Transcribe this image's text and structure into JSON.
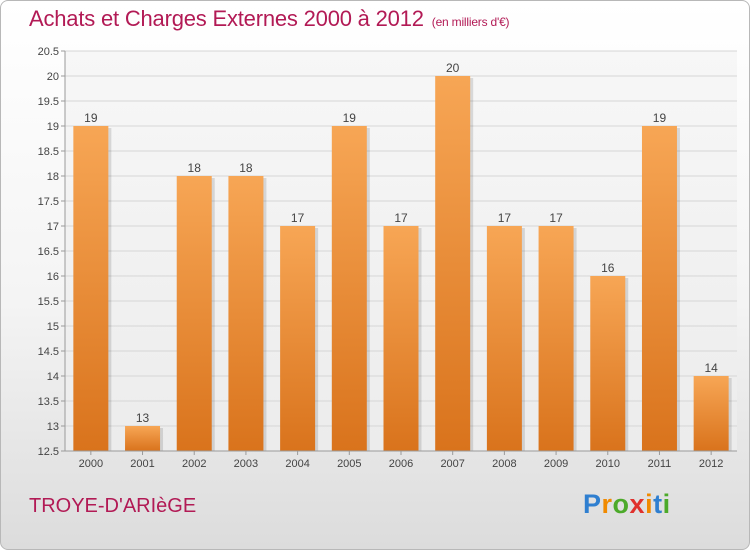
{
  "chart_data": {
    "type": "bar",
    "title": "Achats et Charges Externes 2000 à 2012",
    "unit_note": "(en milliers d'€)",
    "categories": [
      "2000",
      "2001",
      "2002",
      "2003",
      "2004",
      "2005",
      "2006",
      "2007",
      "2008",
      "2009",
      "2010",
      "2011",
      "2012"
    ],
    "values": [
      19,
      13,
      18,
      18,
      17,
      19,
      17,
      20,
      17,
      17,
      16,
      19,
      14
    ],
    "ylim": [
      12.5,
      20.5
    ],
    "yticks": [
      12.5,
      13,
      13.5,
      14,
      14.5,
      15,
      15.5,
      16,
      16.5,
      17,
      17.5,
      18,
      18.5,
      19,
      19.5,
      20,
      20.5
    ],
    "grid": true,
    "bar_color_top": "#f7a655",
    "bar_color_bottom": "#d9731c",
    "legend": "none"
  },
  "footer": {
    "commune": "TROYE-D'ARIèGE",
    "logo": {
      "letters": [
        "P",
        "r",
        "o",
        "x",
        "i",
        "t",
        "i"
      ]
    }
  },
  "colors": {
    "title": "#b21a55",
    "grid": "#d6d6d6"
  }
}
